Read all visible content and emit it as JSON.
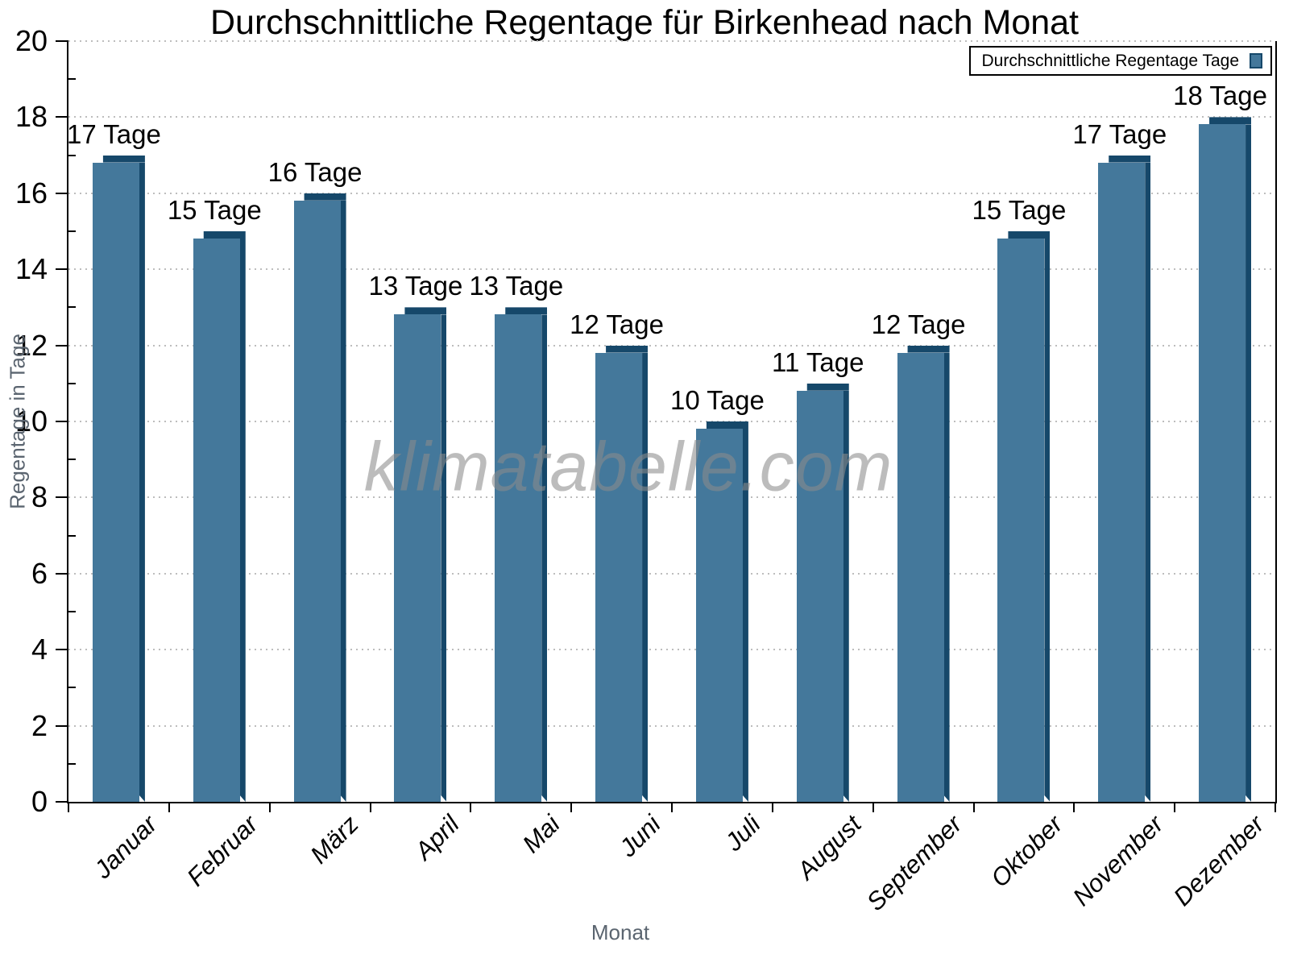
{
  "chart_data": {
    "type": "bar",
    "title": "Durchschnittliche Regentage für Birkenhead nach Monat",
    "xlabel": "Monat",
    "ylabel": "Regentage in Tage",
    "categories": [
      "Januar",
      "Februar",
      "März",
      "April",
      "Mai",
      "Juni",
      "Juli",
      "August",
      "September",
      "Oktober",
      "November",
      "Dezember"
    ],
    "values": [
      17,
      15,
      16,
      13,
      13,
      12,
      10,
      11,
      12,
      15,
      17,
      18
    ],
    "value_label_suffix": " Tage",
    "ylim": [
      0,
      20
    ],
    "y_major_step": 2,
    "y_minor_step": 1,
    "grid": "horizontal dotted lines at major ticks",
    "legend_position": "top-right"
  },
  "legend": {
    "label": "Durchschnittliche Regentage Tage"
  },
  "watermark": {
    "text": "klimatabelle.com"
  },
  "colors": {
    "bar_face": "#44789B",
    "bar_edge_dark": "#16486A",
    "axis": "#000000",
    "grid_dots": "#bdbdbd",
    "axis_title_gray": "#5B6570",
    "watermark_gray": "#8C8C8C",
    "background": "#FFFFFF"
  }
}
